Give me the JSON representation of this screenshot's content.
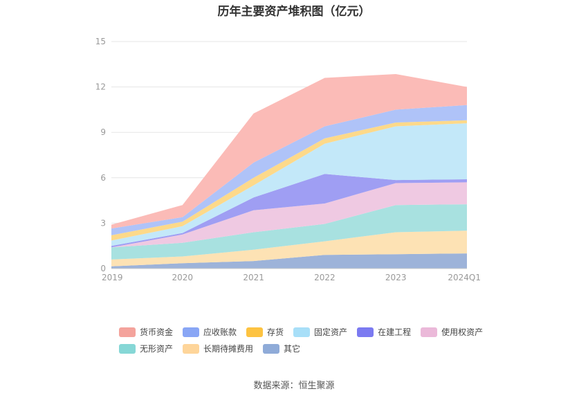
{
  "chart_data": {
    "type": "area",
    "stacked": true,
    "title": "历年主要资产堆积图（亿元）",
    "categories": [
      "2019",
      "2020",
      "2021",
      "2022",
      "2023",
      "2024Q1"
    ],
    "yticks": [
      "0",
      "3",
      "6",
      "9",
      "12",
      "15"
    ],
    "ylim": [
      0,
      15
    ],
    "grid": true,
    "legend_position": "bottom",
    "series": [
      {
        "name": "其它",
        "color": "#9db3d9",
        "values": [
          0.15,
          0.35,
          0.5,
          0.9,
          0.95,
          1.0
        ]
      },
      {
        "name": "长期待摊费用",
        "color": "#fde2b4",
        "values": [
          0.45,
          0.45,
          0.75,
          0.9,
          1.45,
          1.5
        ]
      },
      {
        "name": "无形资产",
        "color": "#a8e1e0",
        "values": [
          0.8,
          0.9,
          1.15,
          1.15,
          1.8,
          1.75
        ]
      },
      {
        "name": "使用权资产",
        "color": "#efc9e2",
        "values": [
          0.0,
          0.55,
          1.45,
          1.35,
          1.45,
          1.45
        ]
      },
      {
        "name": "在建工程",
        "color": "#9f9ef3",
        "values": [
          0.1,
          0.1,
          0.85,
          1.95,
          0.2,
          0.2
        ]
      },
      {
        "name": "固定资产",
        "color": "#c3e8f9",
        "values": [
          0.35,
          0.45,
          0.8,
          2.0,
          3.55,
          3.7
        ]
      },
      {
        "name": "存货",
        "color": "#fdd98a",
        "values": [
          0.35,
          0.3,
          0.5,
          0.35,
          0.25,
          0.2
        ]
      },
      {
        "name": "应收账款",
        "color": "#afc3f8",
        "values": [
          0.45,
          0.3,
          1.0,
          0.8,
          0.85,
          1.0
        ]
      },
      {
        "name": "货币资金",
        "color": "#fbbbb7",
        "values": [
          0.25,
          0.8,
          3.25,
          3.2,
          2.35,
          1.2
        ]
      }
    ]
  },
  "legend": [
    {
      "label": "货币资金",
      "color": "#f4a39c"
    },
    {
      "label": "应收账款",
      "color": "#89a6f5"
    },
    {
      "label": "存货",
      "color": "#fdc341"
    },
    {
      "label": "固定资产",
      "color": "#a8dff8"
    },
    {
      "label": "在建工程",
      "color": "#7b7af1"
    },
    {
      "label": "使用权资产",
      "color": "#ebb9d9"
    },
    {
      "label": "无形资产",
      "color": "#86d7d6"
    },
    {
      "label": "长期待摊费用",
      "color": "#fed59a"
    },
    {
      "label": "其它",
      "color": "#8fabd8"
    }
  ],
  "source_text": "数据来源：恒生聚源"
}
